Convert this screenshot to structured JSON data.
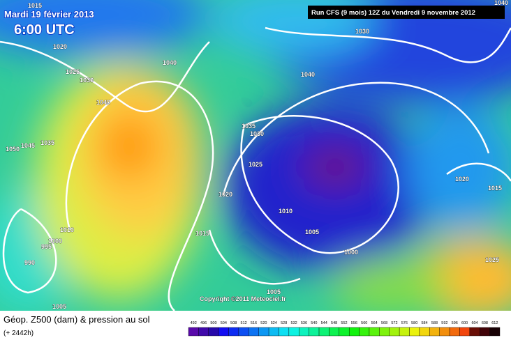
{
  "header": {
    "date": "Mardi 19 février 2013",
    "time": "6:00 UTC",
    "run": "Run CFS (9 mois) 12Z du Vendredi 9 novembre 2012"
  },
  "isobar_labels": [
    1015,
    1020,
    1025,
    1030,
    1040,
    1040,
    1040,
    1030,
    1035,
    1030,
    1025,
    1020,
    1010,
    1005,
    1000,
    1015,
    1050,
    1045,
    1035,
    1010,
    1000,
    995,
    990,
    1005,
    1005,
    1020,
    1015,
    1025,
    1040
  ],
  "copyright": "Copyright ©2011 Meteociel.fr",
  "legend": {
    "caption": "Géop. Z500 (dam) & pression au sol",
    "lead_time": "(+ 2442h)",
    "scale": [
      492,
      496,
      500,
      504,
      508,
      512,
      516,
      520,
      524,
      528,
      532,
      536,
      540,
      544,
      548,
      552,
      556,
      560,
      564,
      568,
      572,
      576,
      580,
      584,
      588,
      592,
      596,
      600,
      604,
      608,
      612
    ]
  }
}
